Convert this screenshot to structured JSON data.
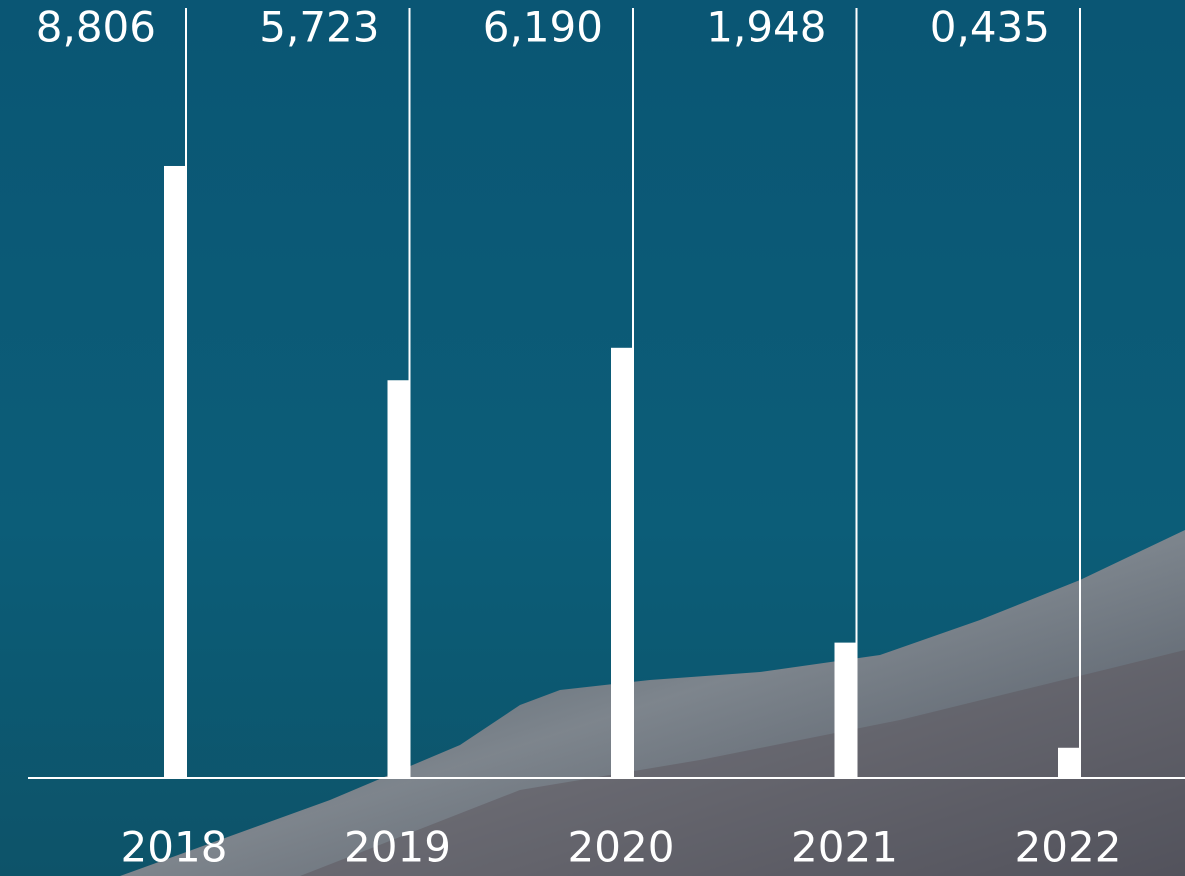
{
  "chart_data": {
    "type": "bar",
    "categories": [
      "2018",
      "2019",
      "2020",
      "2021",
      "2022"
    ],
    "values": [
      8.806,
      5.723,
      6.19,
      1.948,
      0.435
    ],
    "value_labels": [
      "8,806",
      "5,723",
      "6,190",
      "1,948",
      "0,435"
    ],
    "color": "#ffffff"
  }
}
